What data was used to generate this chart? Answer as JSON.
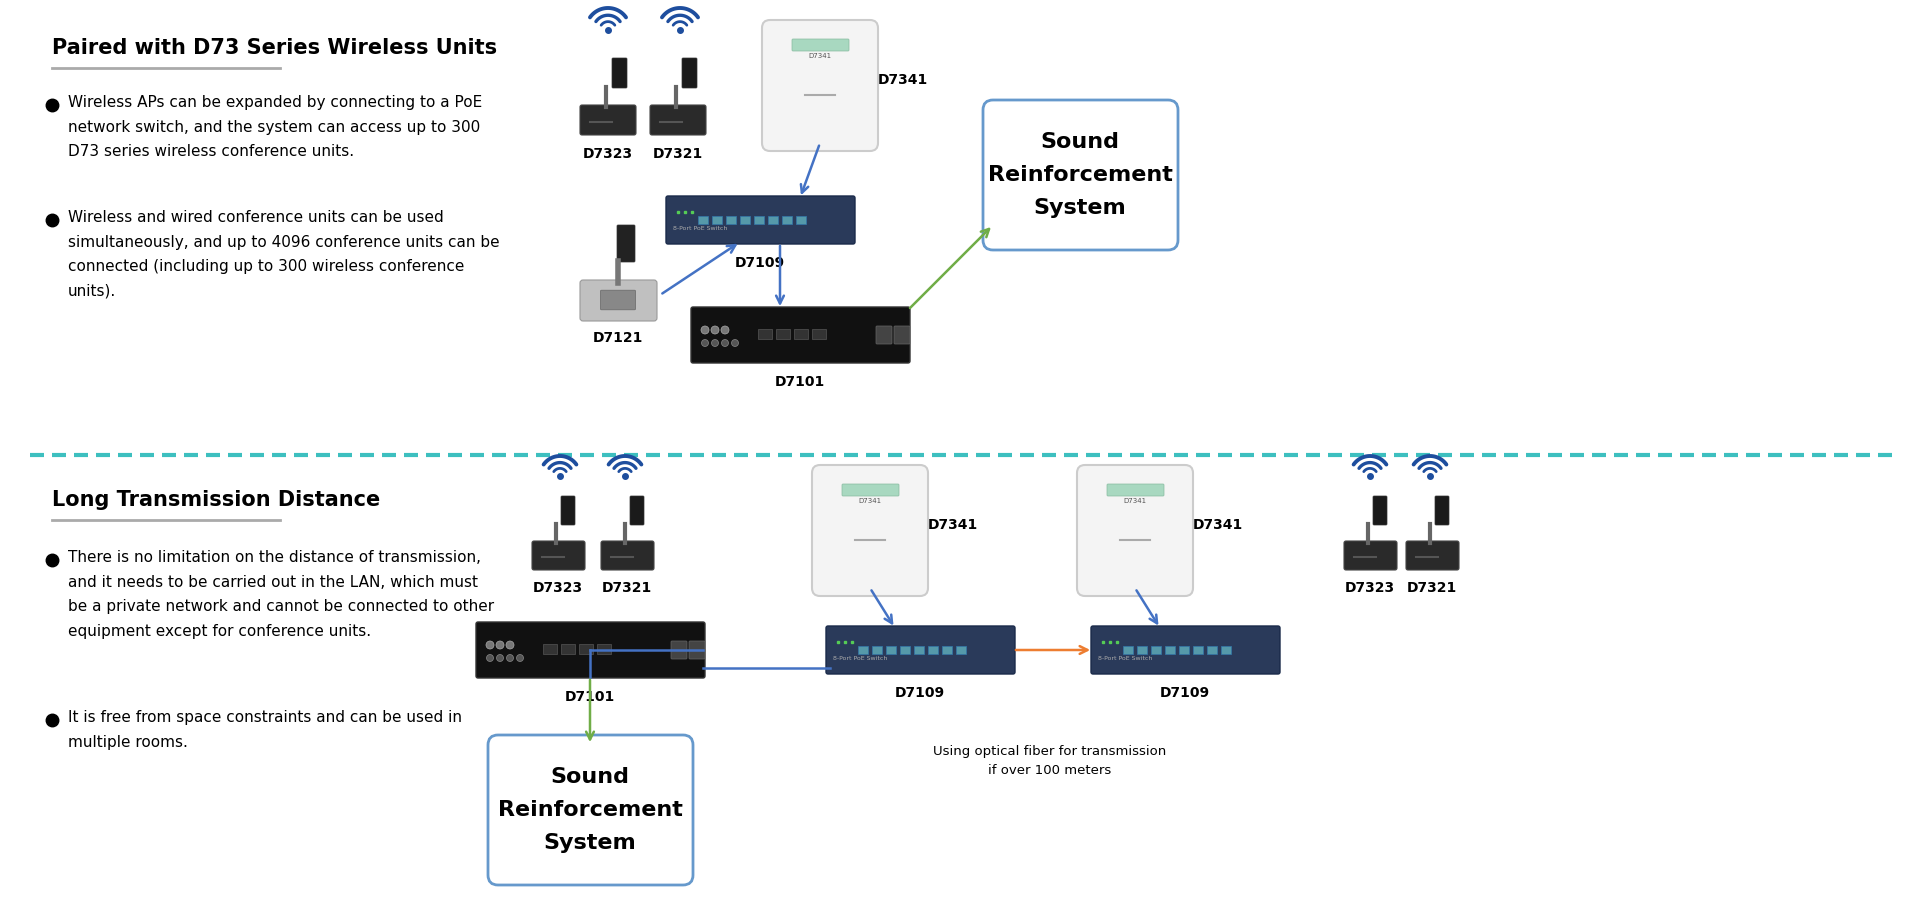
{
  "bg_color": "#ffffff",
  "divider_color": "#3dbfbf",
  "section1_title": "Paired with D73 Series Wireless Units",
  "section1_bullet1": "Wireless APs can be expanded by connecting to a PoE\nnetwork switch, and the system can access up to 300\nD73 series wireless conference units.",
  "section1_bullet2": "Wireless and wired conference units can be used\nsimultaneously, and up to 4096 conference units can be\nconnected (including up to 300 wireless conference\nunits).",
  "section2_title": "Long Transmission Distance",
  "section2_bullet1": "There is no limitation on the distance of transmission,\nand it needs to be carried out in the LAN, which must\nbe a private network and cannot be connected to other\nequipment except for conference units.",
  "section2_bullet2": "It is free from space constraints and can be used in\nmultiple rooms.",
  "sound_box_text": "Sound\nReinforcement\nSystem",
  "fiber_note": "Using optical fiber for transmission\nif over 100 meters",
  "wifi_color": "#1e4e9e",
  "arrow_blue": "#4472c4",
  "arrow_green": "#70ad47",
  "arrow_orange": "#ed7d31",
  "text_color": "#000000"
}
